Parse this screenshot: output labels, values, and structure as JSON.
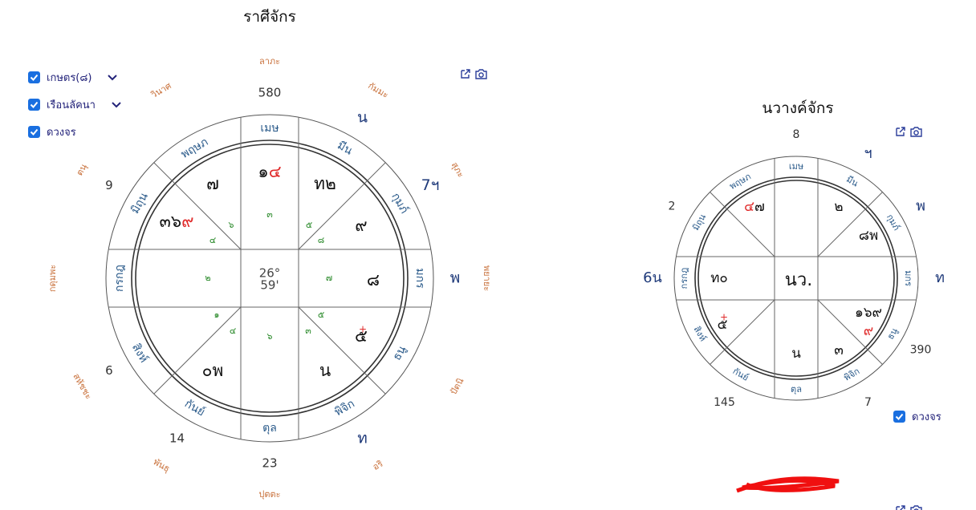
{
  "left_chart": {
    "title": "ราศีจักร",
    "controls": [
      {
        "label": "เกษตร(๘)",
        "checked": true,
        "dropdown": true
      },
      {
        "label": "เรือนลัคนา",
        "checked": true,
        "dropdown": true
      },
      {
        "label": "ดวงจร",
        "checked": true,
        "dropdown": false
      }
    ],
    "signs": [
      "เมษ",
      "มีน",
      "กุมภ์",
      "มกร",
      "ธนู",
      "พิจิก",
      "ตุล",
      "กันย์",
      "สิงห์",
      "กรกฎ",
      "มิถุน",
      "พฤษภ"
    ],
    "outer": [
      "580",
      "น",
      "7ฯ",
      "พ",
      null,
      "ท",
      "23",
      "14",
      "6",
      null,
      "9",
      null
    ],
    "houses": [
      "ลาภะ",
      "กัมมะ",
      "สุภะ",
      "พยายะ",
      "ปัตนิ",
      "อริ",
      "ปุตตะ",
      "พันธุ",
      "สหัชชะ",
      "กดุมพะ",
      "ตนุ",
      "วินาศ"
    ],
    "cells": [
      {
        "parts": [
          {
            "text": "๑"
          },
          {
            "text": "๔",
            "color": "#e02a2a"
          }
        ]
      },
      {
        "parts": [
          {
            "text": "ท๒"
          }
        ]
      },
      {
        "parts": [
          {
            "text": "๗"
          }
        ]
      },
      {
        "parts": [
          {
            "text": "๓๖"
          },
          {
            "text": "๙",
            "color": "#e02a2a"
          }
        ]
      },
      {
        "parts": [
          {
            "text": "๙"
          }
        ]
      },
      {
        "parts": [
          {
            "text": "๘"
          }
        ]
      },
      {
        "parts": [
          {
            "text": "๕"
          }
        ],
        "mark": "+"
      },
      {
        "parts": [
          {
            "text": "น"
          }
        ]
      },
      {
        "parts": [
          {
            "text": "๐พ"
          }
        ]
      }
    ],
    "small": [
      "๓",
      "๖",
      "๔",
      "๕",
      "๘",
      "๒",
      "๗",
      "๑",
      "๔",
      "๖",
      "๓",
      "๕"
    ],
    "center": [
      "26°",
      "59'"
    ]
  },
  "right_chart": {
    "title": "นวางค์จักร",
    "controls": [
      {
        "label": "ดวงจร",
        "checked": true
      }
    ],
    "signs": [
      "เมษ",
      "มีน",
      "กุมภ์",
      "มกร",
      "ธนู",
      "พิจิก",
      "ตุล",
      "กันย์",
      "สิงห์",
      "กรกฎ",
      "มิถุน",
      "พฤษภ"
    ],
    "outer": [
      "8",
      "ฯ",
      "พ",
      "ท",
      "390",
      "7",
      null,
      "145",
      null,
      "6น",
      "2",
      null
    ],
    "cells": [
      {
        "parts": [
          {
            "text": "๔",
            "color": "#e02a2a"
          },
          {
            "text": "๗"
          }
        ]
      },
      {
        "parts": [
          {
            "text": "๒"
          }
        ]
      },
      {
        "parts": [
          {
            "text": "๘พ"
          }
        ]
      },
      {
        "parts": [
          {
            "text": "ท๐"
          }
        ]
      },
      {
        "parts": [
          {
            "text": "นว."
          }
        ]
      },
      {
        "parts": [
          {
            "text": "๑๖๙"
          }
        ]
      },
      {
        "parts": [
          {
            "text": "๙",
            "color": "#e02a2a"
          }
        ]
      },
      {
        "parts": [
          {
            "text": "๕"
          }
        ],
        "mark": "+"
      },
      {
        "parts": [
          {
            "text": "๓"
          }
        ]
      },
      {
        "parts": [
          {
            "text": "น"
          }
        ]
      }
    ]
  }
}
